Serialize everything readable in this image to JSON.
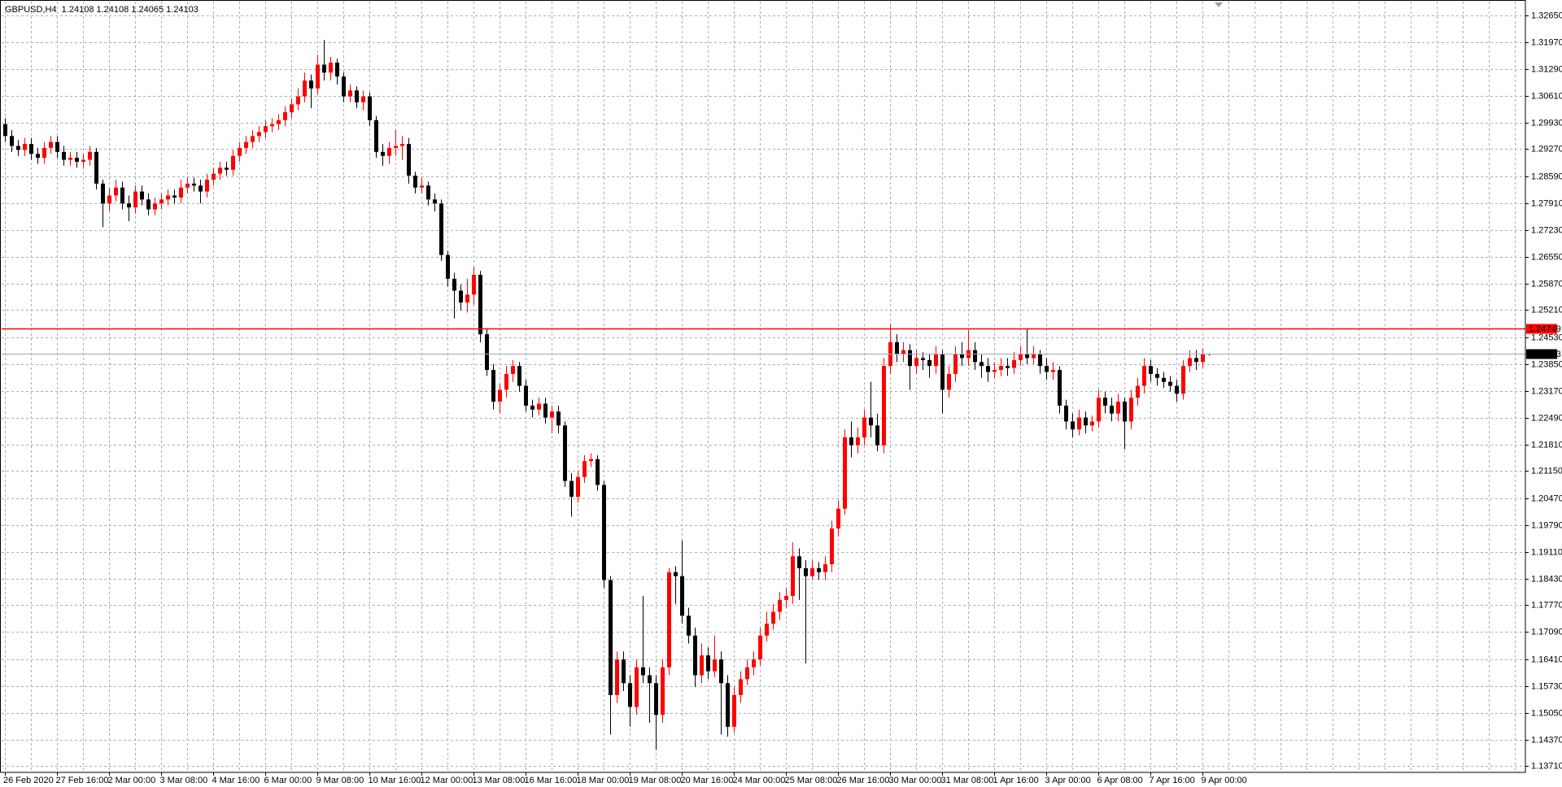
{
  "chart_data": {
    "type": "candlestick",
    "title": "GBPUSD,H4  1.24108 1.24108 1.24065 1.24103",
    "up_color": "#ff0000",
    "down_color": "#000000",
    "grid": true,
    "ylim": [
      1.1355,
      1.3299
    ],
    "yticks": [
      {
        "value": 1.3265,
        "label": "1.32650"
      },
      {
        "value": 1.3197,
        "label": "1.31970"
      },
      {
        "value": 1.3129,
        "label": "1.31290"
      },
      {
        "value": 1.3061,
        "label": "1.30610"
      },
      {
        "value": 1.2993,
        "label": "1.29930"
      },
      {
        "value": 1.2927,
        "label": "1.29270"
      },
      {
        "value": 1.2859,
        "label": "1.28590"
      },
      {
        "value": 1.2791,
        "label": "1.27910"
      },
      {
        "value": 1.2723,
        "label": "1.27230"
      },
      {
        "value": 1.2655,
        "label": "1.26550"
      },
      {
        "value": 1.2587,
        "label": "1.25870"
      },
      {
        "value": 1.2521,
        "label": "1.25210"
      },
      {
        "value": 1.2453,
        "label": "1.24530"
      },
      {
        "value": 1.2385,
        "label": "1.23850"
      },
      {
        "value": 1.2317,
        "label": "1.23170"
      },
      {
        "value": 1.2249,
        "label": "1.22490"
      },
      {
        "value": 1.2181,
        "label": "1.21810"
      },
      {
        "value": 1.2115,
        "label": "1.21150"
      },
      {
        "value": 1.2047,
        "label": "1.20470"
      },
      {
        "value": 1.1979,
        "label": "1.19790"
      },
      {
        "value": 1.1911,
        "label": "1.19110"
      },
      {
        "value": 1.1843,
        "label": "1.18430"
      },
      {
        "value": 1.1777,
        "label": "1.17770"
      },
      {
        "value": 1.1709,
        "label": "1.17090"
      },
      {
        "value": 1.1641,
        "label": "1.16410"
      },
      {
        "value": 1.1573,
        "label": "1.15730"
      },
      {
        "value": 1.1505,
        "label": "1.15050"
      },
      {
        "value": 1.1437,
        "label": "1.14370"
      },
      {
        "value": 1.1371,
        "label": "1.13710"
      }
    ],
    "levels": [
      {
        "value": 1.24749,
        "color": "#ff0000",
        "label_bg": "#ff0000"
      },
      {
        "value": 1.24103,
        "color": "#a0a8b8",
        "label_bg": "#000000"
      }
    ],
    "categories": [
      "26 Feb 2020",
      null,
      null,
      null,
      null,
      null,
      null,
      null,
      "27 Feb 16:00",
      null,
      null,
      null,
      null,
      null,
      null,
      null,
      "2 Mar 00:00",
      null,
      null,
      null,
      null,
      null,
      null,
      null,
      "3 Mar 08:00",
      null,
      null,
      null,
      null,
      null,
      null,
      null,
      "4 Mar 16:00",
      null,
      null,
      null,
      null,
      null,
      null,
      null,
      "6 Mar 00:00",
      null,
      null,
      null,
      null,
      null,
      null,
      null,
      "9 Mar 08:00",
      null,
      null,
      null,
      null,
      null,
      null,
      null,
      "10 Mar 16:00",
      null,
      null,
      null,
      null,
      null,
      null,
      null,
      "12 Mar 00:00",
      null,
      null,
      null,
      null,
      null,
      null,
      null,
      "13 Mar 08:00",
      null,
      null,
      null,
      null,
      null,
      null,
      null,
      "16 Mar 16:00",
      null,
      null,
      null,
      null,
      null,
      null,
      null,
      "18 Mar 00:00",
      null,
      null,
      null,
      null,
      null,
      null,
      null,
      "19 Mar 08:00",
      null,
      null,
      null,
      null,
      null,
      null,
      null,
      "20 Mar 16:00",
      null,
      null,
      null,
      null,
      null,
      null,
      null,
      "24 Mar 00:00",
      null,
      null,
      null,
      null,
      null,
      null,
      null,
      "25 Mar 08:00",
      null,
      null,
      null,
      null,
      null,
      null,
      null,
      "26 Mar 16:00",
      null,
      null,
      null,
      null,
      null,
      null,
      null,
      "30 Mar 00:00",
      null,
      null,
      null,
      null,
      null,
      null,
      null,
      "31 Mar 08:00",
      null,
      null,
      null,
      null,
      null,
      null,
      null,
      "1 Apr 16:00",
      null,
      null,
      null,
      null,
      null,
      null,
      null,
      "3 Apr 00:00",
      null,
      null,
      null,
      null,
      null,
      null,
      null,
      "6 Apr 08:00",
      null,
      null,
      null,
      null,
      null,
      null,
      null,
      "7 Apr 16:00",
      null,
      null,
      null,
      null,
      null,
      null,
      null,
      "9 Apr 00:00",
      null
    ],
    "open": [
      1.299,
      1.296,
      1.2935,
      1.2925,
      1.294,
      1.2915,
      1.2905,
      1.293,
      1.2945,
      1.292,
      1.29,
      1.2905,
      1.2895,
      1.29,
      1.292,
      1.284,
      1.279,
      1.281,
      1.283,
      1.279,
      1.278,
      1.282,
      1.28,
      1.2775,
      1.279,
      1.28,
      1.281,
      1.2805,
      1.283,
      1.284,
      1.2835,
      1.282,
      1.285,
      1.2865,
      1.288,
      1.2875,
      1.291,
      1.293,
      1.2945,
      1.296,
      1.297,
      1.2985,
      1.299,
      1.3,
      1.302,
      1.304,
      1.306,
      1.31,
      1.308,
      1.314,
      1.312,
      1.3145,
      1.311,
      1.306,
      1.3075,
      1.3045,
      1.306,
      1.3,
      1.292,
      1.291,
      1.293,
      1.2935,
      1.294,
      1.286,
      1.283,
      1.2835,
      1.28,
      1.279,
      1.266,
      1.26,
      1.257,
      1.254,
      1.256,
      1.261,
      1.246,
      1.237,
      1.229,
      1.232,
      1.236,
      1.238,
      1.233,
      1.228,
      1.227,
      1.2285,
      1.225,
      1.2265,
      1.223,
      1.209,
      1.205,
      1.21,
      1.214,
      1.2145,
      1.208,
      1.184,
      1.155,
      1.164,
      1.158,
      1.152,
      1.162,
      1.16,
      1.158,
      1.15,
      1.162,
      1.186,
      1.185,
      1.175,
      1.17,
      1.16,
      1.165,
      1.161,
      1.164,
      1.158,
      1.147,
      1.155,
      1.159,
      1.162,
      1.164,
      1.17,
      1.173,
      1.176,
      1.179,
      1.18,
      1.19,
      1.187,
      1.185,
      1.187,
      1.186,
      1.188,
      1.197,
      1.202,
      1.22,
      1.218,
      1.22,
      1.225,
      1.223,
      1.218,
      1.238,
      1.244,
      1.241,
      1.242,
      1.238,
      1.24,
      1.2395,
      1.238,
      1.241,
      1.232,
      1.236,
      1.241,
      1.24,
      1.242,
      1.239,
      1.238,
      1.2365,
      1.237,
      1.238,
      1.2375,
      1.2395,
      1.241,
      1.24,
      1.241,
      1.238,
      1.2365,
      1.237,
      1.228,
      1.224,
      1.222,
      1.225,
      1.223,
      1.224,
      1.23,
      1.228,
      1.226,
      1.229,
      1.224,
      1.23,
      1.233,
      1.238,
      1.236,
      1.235,
      1.234,
      1.233,
      1.231,
      1.238,
      1.24,
      1.239,
      1.24108
    ],
    "high": [
      1.3005,
      1.2975,
      1.295,
      1.2955,
      1.2955,
      1.293,
      1.2945,
      1.296,
      1.296,
      1.2935,
      1.292,
      1.292,
      1.2915,
      1.2935,
      1.293,
      1.285,
      1.283,
      1.285,
      1.2845,
      1.281,
      1.2835,
      1.2835,
      1.2815,
      1.2805,
      1.2815,
      1.2825,
      1.2825,
      1.285,
      1.2855,
      1.2855,
      1.285,
      1.2865,
      1.288,
      1.2895,
      1.2895,
      1.2925,
      1.2945,
      1.296,
      1.2975,
      1.2985,
      1.3,
      1.3005,
      1.3015,
      1.3035,
      1.3055,
      1.308,
      1.312,
      1.3115,
      1.3165,
      1.3202,
      1.316,
      1.3155,
      1.312,
      1.309,
      1.3085,
      1.3075,
      1.307,
      1.301,
      1.294,
      1.2945,
      1.2975,
      1.296,
      1.2955,
      1.287,
      1.2855,
      1.2845,
      1.2815,
      1.28,
      1.267,
      1.2615,
      1.2585,
      1.26,
      1.263,
      1.262,
      1.2475,
      1.2385,
      1.2335,
      1.238,
      1.2395,
      1.239,
      1.2345,
      1.2295,
      1.23,
      1.23,
      1.228,
      1.228,
      1.224,
      1.211,
      1.2115,
      1.2155,
      1.216,
      1.2155,
      1.209,
      1.185,
      1.166,
      1.166,
      1.16,
      1.164,
      1.18,
      1.162,
      1.16,
      1.164,
      1.187,
      1.1875,
      1.194,
      1.177,
      1.172,
      1.168,
      1.167,
      1.17,
      1.166,
      1.16,
      1.157,
      1.161,
      1.164,
      1.166,
      1.172,
      1.176,
      1.178,
      1.181,
      1.182,
      1.1935,
      1.192,
      1.189,
      1.189,
      1.1885,
      1.19,
      1.199,
      1.204,
      1.222,
      1.224,
      1.2225,
      1.227,
      1.234,
      1.226,
      1.24,
      1.2486,
      1.246,
      1.244,
      1.2435,
      1.242,
      1.2415,
      1.241,
      1.243,
      1.242,
      1.238,
      1.243,
      1.244,
      1.247,
      1.244,
      1.241,
      1.24,
      1.239,
      1.24,
      1.24,
      1.2415,
      1.243,
      1.2475,
      1.243,
      1.242,
      1.24,
      1.239,
      1.238,
      1.2295,
      1.226,
      1.227,
      1.2265,
      1.2255,
      1.232,
      1.2315,
      1.23,
      1.231,
      1.23,
      1.232,
      1.235,
      1.24,
      1.2395,
      1.2375,
      1.2365,
      1.2355,
      1.2345,
      1.2395,
      1.242,
      1.242,
      1.2425,
      1.24108
    ],
    "low": [
      1.2945,
      1.292,
      1.291,
      1.291,
      1.29,
      1.289,
      1.289,
      1.2915,
      1.2905,
      1.2885,
      1.2885,
      1.288,
      1.288,
      1.2885,
      1.2825,
      1.273,
      1.277,
      1.2795,
      1.2775,
      1.2745,
      1.2765,
      1.2785,
      1.276,
      1.276,
      1.2775,
      1.2785,
      1.279,
      1.279,
      1.2815,
      1.282,
      1.279,
      1.2805,
      1.2835,
      1.285,
      1.286,
      1.286,
      1.2895,
      1.2915,
      1.293,
      1.2945,
      1.2955,
      1.297,
      1.2975,
      1.2985,
      1.3005,
      1.3025,
      1.3045,
      1.303,
      1.3065,
      1.31,
      1.31,
      1.309,
      1.3045,
      1.3045,
      1.303,
      1.3025,
      1.2985,
      1.2905,
      1.2885,
      1.289,
      1.291,
      1.29,
      1.284,
      1.2815,
      1.2815,
      1.2785,
      1.277,
      1.2645,
      1.258,
      1.25,
      1.252,
      1.2515,
      1.2535,
      1.244,
      1.2355,
      1.227,
      1.226,
      1.23,
      1.234,
      1.2315,
      1.2265,
      1.225,
      1.2255,
      1.2235,
      1.221,
      1.221,
      1.2075,
      1.2,
      1.2035,
      1.2085,
      1.2125,
      1.2065,
      1.182,
      1.145,
      1.153,
      1.156,
      1.147,
      1.15,
      1.158,
      1.148,
      1.1412,
      1.148,
      1.16,
      1.178,
      1.173,
      1.168,
      1.157,
      1.158,
      1.159,
      1.1595,
      1.145,
      1.1445,
      1.1455,
      1.153,
      1.1575,
      1.16,
      1.1625,
      1.1685,
      1.1715,
      1.174,
      1.177,
      1.178,
      1.179,
      1.163,
      1.184,
      1.184,
      1.184,
      1.186,
      1.195,
      1.2005,
      1.215,
      1.216,
      1.218,
      1.22,
      1.2165,
      1.216,
      1.236,
      1.239,
      1.239,
      1.232,
      1.236,
      1.237,
      1.235,
      1.236,
      1.226,
      1.23,
      1.234,
      1.238,
      1.238,
      1.237,
      1.235,
      1.234,
      1.235,
      1.2355,
      1.2355,
      1.236,
      1.238,
      1.2385,
      1.2385,
      1.236,
      1.2345,
      1.2345,
      1.226,
      1.222,
      1.22,
      1.2205,
      1.221,
      1.2215,
      1.2225,
      1.226,
      1.224,
      1.224,
      1.217,
      1.222,
      1.228,
      1.231,
      1.234,
      1.233,
      1.2325,
      1.2315,
      1.229,
      1.2295,
      1.2365,
      1.237,
      1.2375,
      1.24065
    ],
    "close": [
      1.296,
      1.2935,
      1.2925,
      1.294,
      1.2915,
      1.2905,
      1.293,
      1.2945,
      1.292,
      1.29,
      1.2905,
      1.2895,
      1.29,
      1.292,
      1.284,
      1.279,
      1.281,
      1.283,
      1.279,
      1.278,
      1.282,
      1.28,
      1.2775,
      1.279,
      1.28,
      1.281,
      1.2805,
      1.283,
      1.284,
      1.2835,
      1.282,
      1.285,
      1.2865,
      1.288,
      1.2875,
      1.291,
      1.293,
      1.2945,
      1.296,
      1.297,
      1.2985,
      1.299,
      1.3,
      1.302,
      1.304,
      1.306,
      1.31,
      1.308,
      1.314,
      1.312,
      1.3145,
      1.311,
      1.306,
      1.3075,
      1.3045,
      1.306,
      1.3,
      1.292,
      1.291,
      1.293,
      1.2935,
      1.294,
      1.286,
      1.283,
      1.2835,
      1.28,
      1.279,
      1.266,
      1.26,
      1.257,
      1.254,
      1.256,
      1.261,
      1.246,
      1.237,
      1.229,
      1.232,
      1.236,
      1.238,
      1.233,
      1.228,
      1.227,
      1.2285,
      1.225,
      1.2265,
      1.223,
      1.209,
      1.205,
      1.21,
      1.214,
      1.2145,
      1.208,
      1.184,
      1.155,
      1.164,
      1.158,
      1.152,
      1.162,
      1.16,
      1.158,
      1.15,
      1.162,
      1.186,
      1.185,
      1.175,
      1.17,
      1.16,
      1.165,
      1.161,
      1.164,
      1.158,
      1.147,
      1.155,
      1.159,
      1.162,
      1.164,
      1.17,
      1.173,
      1.176,
      1.179,
      1.18,
      1.19,
      1.187,
      1.185,
      1.187,
      1.186,
      1.188,
      1.197,
      1.202,
      1.22,
      1.218,
      1.22,
      1.225,
      1.223,
      1.218,
      1.238,
      1.244,
      1.241,
      1.242,
      1.238,
      1.24,
      1.2395,
      1.238,
      1.241,
      1.232,
      1.236,
      1.241,
      1.24,
      1.242,
      1.239,
      1.238,
      1.2365,
      1.237,
      1.238,
      1.2375,
      1.2395,
      1.241,
      1.24,
      1.241,
      1.238,
      1.2365,
      1.237,
      1.228,
      1.224,
      1.222,
      1.225,
      1.223,
      1.224,
      1.23,
      1.228,
      1.226,
      1.229,
      1.224,
      1.23,
      1.233,
      1.238,
      1.236,
      1.235,
      1.234,
      1.233,
      1.231,
      1.238,
      1.24,
      1.239,
      1.241,
      1.24103
    ]
  }
}
